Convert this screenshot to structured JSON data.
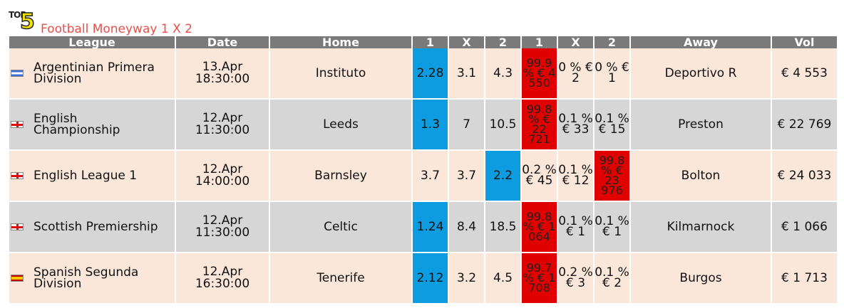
{
  "header": {
    "logo_text": "TOP5",
    "title": "Football Moneyway 1 X 2"
  },
  "columns": [
    "League",
    "Date",
    "Home",
    "1",
    "X",
    "2",
    "1",
    "X",
    "2",
    "Away",
    "Vol"
  ],
  "rows": [
    {
      "flag": "argentina-flag-icon",
      "league": "Argentinian Primera Division",
      "date": "13.Apr",
      "time": "18:30:00",
      "home": "Instituto",
      "o1": "2.28",
      "ox": "3.1",
      "o2": "4.3",
      "m1": "99.9 % € 4 550",
      "mx": "0 % € 2",
      "m2": "0 % € 1",
      "away": "Deportivo R",
      "vol": "€ 4 553"
    },
    {
      "flag": "england-flag-icon",
      "league": "English Championship",
      "date": "12.Apr",
      "time": "11:30:00",
      "home": "Leeds",
      "o1": "1.3",
      "ox": "7",
      "o2": "10.5",
      "m1": "99.8 % € 22 721",
      "mx": "0.1 % € 33",
      "m2": "0.1 % € 15",
      "away": "Preston",
      "vol": "€ 22 769"
    },
    {
      "flag": "england-flag-icon",
      "league": "English League 1",
      "date": "12.Apr",
      "time": "14:00:00",
      "home": "Barnsley",
      "o1": "3.7",
      "ox": "3.7",
      "o2": "2.2",
      "m1": "0.2 % € 45",
      "mx": "0.1 % € 12",
      "m2": "99.8 % € 23 976",
      "away": "Bolton",
      "vol": "€ 24 033"
    },
    {
      "flag": "england-flag-icon",
      "league": "Scottish Premiership",
      "date": "12.Apr",
      "time": "11:30:00",
      "home": "Celtic",
      "o1": "1.24",
      "ox": "8.4",
      "o2": "18.5",
      "m1": "99.8 % € 1 064",
      "mx": "0.1 % € 1",
      "m2": "0.1 % € 1",
      "away": "Kilmarnock",
      "vol": "€ 1 066"
    },
    {
      "flag": "spain-flag-icon",
      "league": "Spanish Segunda Division",
      "date": "12.Apr",
      "time": "16:30:00",
      "home": "Tenerife",
      "o1": "2.12",
      "ox": "3.2",
      "o2": "4.5",
      "m1": "99.7 % € 1 708",
      "mx": "0.2 % € 3",
      "m2": "0.1 % € 2",
      "away": "Burgos",
      "vol": "€ 1 713"
    }
  ],
  "colors": {
    "header_bg": "#7a7a7a",
    "row_odd": "#fae7d9",
    "row_even": "#d6d6d6",
    "favourite": "#0d9ce0",
    "hot_money": "#e00000",
    "title": "#e8504a"
  }
}
